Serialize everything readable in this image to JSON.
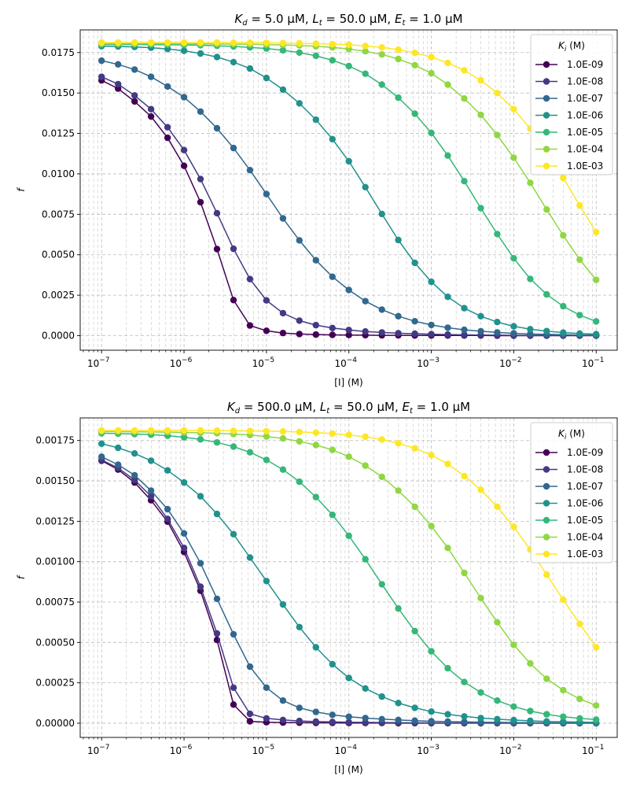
{
  "chart_data": [
    {
      "type": "line",
      "title": "Kd = 5.0 µM, Lt = 50.0 µM, Et = 1.0 µM",
      "title_parts": {
        "k": "K",
        "k_sub": "d",
        "k_val": " = 5.0 µM, ",
        "l": "L",
        "l_sub": "t",
        "l_val": " = 50.0 µM, ",
        "e": "E",
        "e_sub": "t",
        "e_val": " = 1.0 µM"
      },
      "xlabel": "[I] (M)",
      "ylabel": "f",
      "xscale": "log",
      "xlim": [
        5.5e-08,
        0.18
      ],
      "ylim": [
        -0.0009,
        0.0189
      ],
      "yticks": [
        0.0,
        0.0025,
        0.005,
        0.0075,
        0.01,
        0.0125,
        0.015,
        0.0175
      ],
      "ytick_labels": [
        "0.0000",
        "0.0025",
        "0.0050",
        "0.0075",
        "0.0100",
        "0.0125",
        "0.0150",
        "0.0175"
      ],
      "xticks": [
        1e-07,
        1e-06,
        1e-05,
        0.0001,
        0.001,
        0.01,
        0.1
      ],
      "xtick_labels": [
        {
          "base": "10",
          "exp": "−7"
        },
        {
          "base": "10",
          "exp": "−6"
        },
        {
          "base": "10",
          "exp": "−5"
        },
        {
          "base": "10",
          "exp": "−4"
        },
        {
          "base": "10",
          "exp": "−3"
        },
        {
          "base": "10",
          "exp": "−2"
        },
        {
          "base": "10",
          "exp": "−1"
        }
      ],
      "grid": true,
      "legend_title": "Ki (M)",
      "legend_title_parts": {
        "k": "K",
        "k_sub": "i",
        "unit": " (M)"
      },
      "legend_position": "top-right",
      "x_points": {
        "start": 1e-07,
        "end": 0.1,
        "count": 31
      },
      "series": [
        {
          "name": "1.0E-09",
          "color": "#440154",
          "values": [
            0.01578,
            0.01527,
            0.01448,
            0.01355,
            0.01223,
            0.0105,
            0.00825,
            0.00535,
            0.0022,
            0.00063,
            0.0003,
            0.00016,
            0.0001,
            7e-05,
            5e-05,
            4e-05,
            3e-05,
            2e-05,
            2e-05,
            1e-05,
            1e-05,
            1e-05,
            1e-05,
            1e-05,
            0.0,
            0.0,
            0.0,
            0.0,
            0.0,
            0.0,
            0.0
          ]
        },
        {
          "name": "1.0E-08",
          "color": "#443983",
          "values": [
            0.016,
            0.01555,
            0.01485,
            0.014,
            0.01288,
            0.01147,
            0.00968,
            0.00757,
            0.00537,
            0.0035,
            0.00218,
            0.00139,
            0.00093,
            0.00065,
            0.00047,
            0.00035,
            0.00026,
            0.0002,
            0.00015,
            0.00012,
            9e-05,
            7e-05,
            5e-05,
            4e-05,
            3e-05,
            2e-05,
            2e-05,
            1e-05,
            1e-05,
            1e-05,
            1e-05
          ]
        },
        {
          "name": "1.0E-07",
          "color": "#31688e",
          "values": [
            0.017,
            0.01677,
            0.01645,
            0.016,
            0.0154,
            0.01474,
            0.01385,
            0.01282,
            0.0116,
            0.01023,
            0.00875,
            0.00725,
            0.00589,
            0.00466,
            0.00364,
            0.00282,
            0.00213,
            0.00161,
            0.0012,
            0.00089,
            0.00066,
            0.00049,
            0.00036,
            0.00027,
            0.0002,
            0.00014,
            0.0001,
            8e-05,
            6e-05,
            4e-05,
            3e-05
          ]
        },
        {
          "name": "1.0E-06",
          "color": "#21918c",
          "values": [
            0.0179,
            0.01788,
            0.01785,
            0.0178,
            0.01772,
            0.01761,
            0.01744,
            0.01722,
            0.01691,
            0.01651,
            0.01593,
            0.01521,
            0.01436,
            0.01335,
            0.01215,
            0.01078,
            0.00918,
            0.00752,
            0.00591,
            0.0045,
            0.00333,
            0.0024,
            0.0017,
            0.0012,
            0.00084,
            0.00058,
            0.0004,
            0.00028,
            0.00019,
            0.00013,
            9e-05
          ]
        },
        {
          "name": "1.0E-05",
          "color": "#35b779",
          "values": [
            0.018,
            0.018,
            0.018,
            0.01799,
            0.01798,
            0.01797,
            0.01795,
            0.01792,
            0.01788,
            0.01782,
            0.01775,
            0.01764,
            0.0175,
            0.0173,
            0.01702,
            0.01666,
            0.01619,
            0.01552,
            0.01471,
            0.01372,
            0.01253,
            0.01113,
            0.00955,
            0.00788,
            0.00628,
            0.00478,
            0.00351,
            0.00255,
            0.00182,
            0.00127,
            0.00088
          ]
        },
        {
          "name": "1.0E-04",
          "color": "#90d743",
          "values": [
            0.01805,
            0.01805,
            0.01805,
            0.01805,
            0.01805,
            0.01805,
            0.01804,
            0.01803,
            0.01802,
            0.01801,
            0.01799,
            0.01797,
            0.01794,
            0.01789,
            0.01782,
            0.01772,
            0.01758,
            0.01738,
            0.0171,
            0.01672,
            0.01622,
            0.01552,
            0.01466,
            0.01365,
            0.0124,
            0.011,
            0.00945,
            0.0078,
            0.0062,
            0.0047,
            0.00345
          ]
        },
        {
          "name": "1.0E-03",
          "color": "#fde725",
          "values": [
            0.01812,
            0.01812,
            0.01812,
            0.01812,
            0.01812,
            0.01812,
            0.01812,
            0.01812,
            0.01811,
            0.01811,
            0.0181,
            0.01809,
            0.01807,
            0.01805,
            0.01802,
            0.01798,
            0.01791,
            0.01782,
            0.01768,
            0.01748,
            0.01722,
            0.01686,
            0.0164,
            0.01578,
            0.015,
            0.014,
            0.0128,
            0.0114,
            0.00975,
            0.00805,
            0.0064
          ]
        }
      ]
    },
    {
      "type": "line",
      "title": "Kd = 500.0 µM, Lt = 50.0 µM, Et = 1.0 µM",
      "title_parts": {
        "k": "K",
        "k_sub": "d",
        "k_val": " = 500.0 µM, ",
        "l": "L",
        "l_sub": "t",
        "l_val": " = 50.0 µM, ",
        "e": "E",
        "e_sub": "t",
        "e_val": " = 1.0 µM"
      },
      "xlabel": "[I] (M)",
      "ylabel": "f",
      "xscale": "log",
      "xlim": [
        5.5e-08,
        0.18
      ],
      "ylim": [
        -8.8e-05,
        0.00189
      ],
      "yticks": [
        0.0,
        0.00025,
        0.0005,
        0.00075,
        0.001,
        0.00125,
        0.0015,
        0.00175
      ],
      "ytick_labels": [
        "0.00000",
        "0.00025",
        "0.00050",
        "0.00075",
        "0.00100",
        "0.00125",
        "0.00150",
        "0.00175"
      ],
      "xticks": [
        1e-07,
        1e-06,
        1e-05,
        0.0001,
        0.001,
        0.01,
        0.1
      ],
      "xtick_labels": [
        {
          "base": "10",
          "exp": "−7"
        },
        {
          "base": "10",
          "exp": "−6"
        },
        {
          "base": "10",
          "exp": "−5"
        },
        {
          "base": "10",
          "exp": "−4"
        },
        {
          "base": "10",
          "exp": "−3"
        },
        {
          "base": "10",
          "exp": "−2"
        },
        {
          "base": "10",
          "exp": "−1"
        }
      ],
      "grid": true,
      "legend_title": "Ki (M)",
      "legend_title_parts": {
        "k": "K",
        "k_sub": "i",
        "unit": " (M)"
      },
      "legend_position": "top-right",
      "x_points": {
        "start": 1e-07,
        "end": 0.1,
        "count": 31
      },
      "series": [
        {
          "name": "1.0E-09",
          "color": "#440154",
          "values": [
            0.001625,
            0.00157,
            0.00149,
            0.00138,
            0.001248,
            0.00106,
            0.00082,
            0.000515,
            0.000115,
            1.2e-05,
            6e-06,
            4e-06,
            3e-06,
            2e-06,
            2e-06,
            1e-06,
            1e-06,
            1e-06,
            0.0,
            0.0,
            0.0,
            0.0,
            0.0,
            0.0,
            0.0,
            0.0,
            0.0,
            0.0,
            0.0,
            0.0,
            0.0
          ]
        },
        {
          "name": "1.0E-08",
          "color": "#443983",
          "values": [
            0.00163,
            0.00158,
            0.001505,
            0.001405,
            0.001265,
            0.001085,
            0.000845,
            0.000555,
            0.00022,
            5.8e-05,
            3e-05,
            2e-05,
            1.4e-05,
            1e-05,
            8e-06,
            6e-06,
            5e-06,
            4e-06,
            3e-06,
            2e-06,
            2e-06,
            1e-06,
            1e-06,
            1e-06,
            1e-06,
            0.0,
            0.0,
            0.0,
            0.0,
            0.0,
            0.0
          ]
        },
        {
          "name": "1.0E-07",
          "color": "#31688e",
          "values": [
            0.00165,
            0.0016,
            0.001535,
            0.00144,
            0.001325,
            0.001175,
            0.00099,
            0.00077,
            0.00055,
            0.00035,
            0.00022,
            0.00014,
            9.5e-05,
            7e-05,
            5.2e-05,
            4e-05,
            3.2e-05,
            2.5e-05,
            2e-05,
            1.6e-05,
            1.2e-05,
            1e-05,
            8e-06,
            6e-06,
            5e-06,
            4e-06,
            3e-06,
            2e-06,
            2e-06,
            1e-06,
            1e-06
          ]
        },
        {
          "name": "1.0E-06",
          "color": "#21918c",
          "values": [
            0.00173,
            0.001705,
            0.00167,
            0.001625,
            0.001565,
            0.00149,
            0.001405,
            0.001295,
            0.00117,
            0.001025,
            0.00088,
            0.000735,
            0.000595,
            0.00047,
            0.000365,
            0.00028,
            0.000215,
            0.000165,
            0.000125,
            9.5e-05,
            7.2e-05,
            5.5e-05,
            4.2e-05,
            3.2e-05,
            2.5e-05,
            1.9e-05,
            1.5e-05,
            1.1e-05,
            9e-06,
            7e-06,
            5e-06
          ]
        },
        {
          "name": "1.0E-05",
          "color": "#35b779",
          "values": [
            0.001795,
            0.001793,
            0.00179,
            0.001786,
            0.00178,
            0.00177,
            0.001757,
            0.001738,
            0.001712,
            0.001677,
            0.00163,
            0.00157,
            0.001495,
            0.0014,
            0.00129,
            0.00116,
            0.001015,
            0.00086,
            0.00071,
            0.00057,
            0.000445,
            0.00034,
            0.000255,
            0.00019,
            0.00014,
            0.000103,
            7.5e-05,
            5.5e-05,
            4e-05,
            3e-05,
            2.2e-05
          ]
        },
        {
          "name": "1.0E-04",
          "color": "#90d743",
          "values": [
            0.001805,
            0.001805,
            0.001804,
            0.001803,
            0.001802,
            0.0018,
            0.001798,
            0.001795,
            0.00179,
            0.001784,
            0.001775,
            0.001763,
            0.001745,
            0.001722,
            0.001692,
            0.00165,
            0.001595,
            0.001525,
            0.00144,
            0.00134,
            0.00122,
            0.001085,
            0.00093,
            0.000775,
            0.000625,
            0.000485,
            0.00037,
            0.000275,
            0.000205,
            0.00015,
            0.00011
          ]
        },
        {
          "name": "1.0E-03",
          "color": "#fde725",
          "values": [
            0.001812,
            0.001812,
            0.001812,
            0.001812,
            0.001812,
            0.001812,
            0.001812,
            0.001811,
            0.00181,
            0.001809,
            0.001808,
            0.001806,
            0.001803,
            0.001799,
            0.001793,
            0.001785,
            0.001773,
            0.001756,
            0.001733,
            0.001702,
            0.00166,
            0.001605,
            0.00153,
            0.001445,
            0.00134,
            0.001215,
            0.001075,
            0.00092,
            0.000765,
            0.000615,
            0.00047
          ]
        }
      ]
    }
  ]
}
